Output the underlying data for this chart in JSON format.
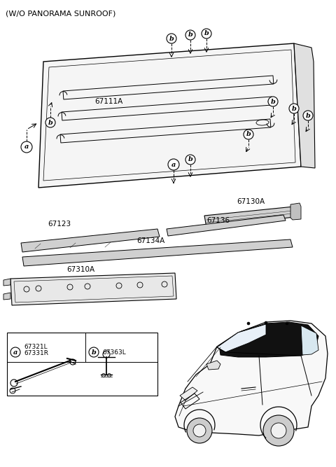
{
  "title": "(W/O PANORAMA SUNROOF)",
  "bg_color": "#ffffff",
  "text_color": "#000000",
  "line_color": "#000000",
  "parts": {
    "main_roof": "67111A",
    "rail1": "67123",
    "rail2": "67134A",
    "rail3": "67136",
    "rail4": "67130A",
    "floor_panel": "67310A",
    "part_a_top": "67321L",
    "part_a_bot": "67331R",
    "part_b": "67363L"
  }
}
